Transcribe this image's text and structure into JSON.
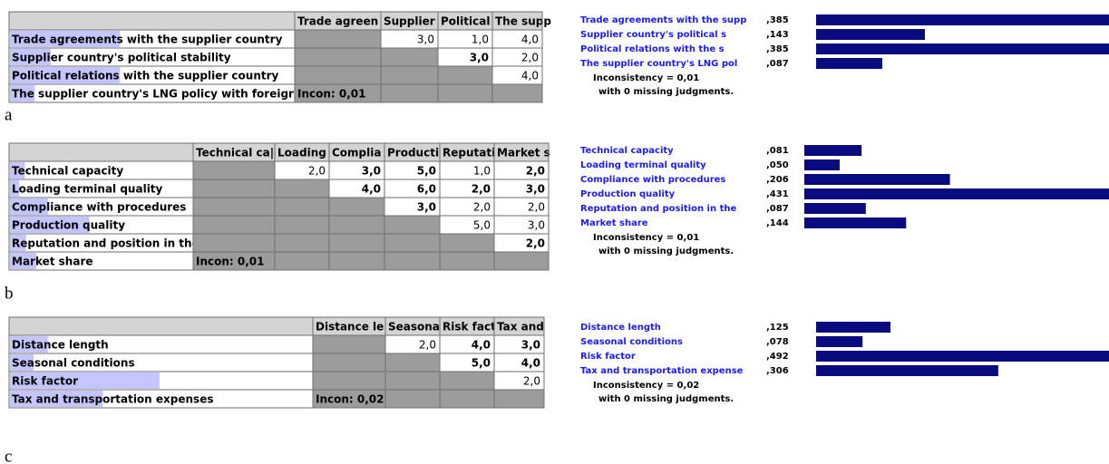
{
  "panels": [
    {
      "letter": "a",
      "columns": [
        "Trade agreen",
        "Supplier",
        "Political",
        "The supp"
      ],
      "rows": [
        {
          "label": "Trade agreements with the supplier country",
          "cells": [
            null,
            {
              "text": "3,0"
            },
            {
              "text": "1,0"
            },
            {
              "text": "4,0"
            }
          ]
        },
        {
          "label": "Supplier country's political stability",
          "cells": [
            null,
            null,
            {
              "text": "3,0",
              "red": true
            },
            {
              "text": "2,0"
            }
          ]
        },
        {
          "label": "Political relations with the supplier country",
          "cells": [
            null,
            null,
            null,
            {
              "text": "4,0"
            }
          ]
        },
        {
          "label": "The supplier country's LNG policy with foreigr",
          "cells": [
            null,
            null,
            null,
            null
          ]
        }
      ],
      "incon": "Incon: 0,01",
      "priorities": {
        "names": [
          "Trade agreements with the supp",
          "Supplier country's political s",
          "Political relations with the s",
          "The supplier country's LNG pol"
        ],
        "values": [
          0.385,
          0.143,
          0.385,
          0.087
        ],
        "value_labels": [
          ",385",
          ",143",
          ",385",
          ",087"
        ]
      },
      "inconsistency": "Inconsistency = 0,01",
      "missing": "with 0  missing judgments."
    },
    {
      "letter": "b",
      "columns": [
        "Technical ca|",
        "Loading",
        "Complia",
        "Producti",
        "Reputati",
        "Market s"
      ],
      "rows": [
        {
          "label": "Technical capacity",
          "cells": [
            null,
            {
              "text": "2,0"
            },
            {
              "text": "3,0",
              "red": true
            },
            {
              "text": "5,0",
              "red": true
            },
            {
              "text": "1,0"
            },
            {
              "text": "2,0",
              "red": true
            }
          ]
        },
        {
          "label": "Loading terminal quality",
          "cells": [
            null,
            null,
            {
              "text": "4,0",
              "red": true
            },
            {
              "text": "6,0",
              "red": true
            },
            {
              "text": "2,0",
              "red": true
            },
            {
              "text": "3,0",
              "red": true
            }
          ]
        },
        {
          "label": "Compliance with procedures",
          "cells": [
            null,
            null,
            null,
            {
              "text": "3,0",
              "red": true
            },
            {
              "text": "2,0"
            },
            {
              "text": "2,0"
            }
          ]
        },
        {
          "label": "Production quality",
          "cells": [
            null,
            null,
            null,
            null,
            {
              "text": "5,0"
            },
            {
              "text": "3,0"
            }
          ]
        },
        {
          "label": "Reputation and position in the",
          "cells": [
            null,
            null,
            null,
            null,
            null,
            {
              "text": "2,0",
              "red": true
            }
          ]
        },
        {
          "label": "Market share",
          "cells": [
            null,
            null,
            null,
            null,
            null,
            null
          ]
        }
      ],
      "incon": "Incon: 0,01",
      "priorities": {
        "names": [
          "Technical capacity",
          "Loading terminal quality",
          "Compliance with procedures",
          "Production quality",
          "Reputation and position in the",
          "Market share"
        ],
        "values": [
          0.081,
          0.05,
          0.206,
          0.431,
          0.087,
          0.144
        ],
        "value_labels": [
          ",081",
          ",050",
          ",206",
          ",431",
          ",087",
          ",144"
        ]
      },
      "inconsistency": "Inconsistency = 0,01",
      "missing": "with 0  missing judgments."
    },
    {
      "letter": "c",
      "columns": [
        "Distance le",
        "Seasona",
        "Risk fact",
        "Tax and"
      ],
      "rows": [
        {
          "label": "Distance length",
          "cells": [
            null,
            {
              "text": "2,0"
            },
            {
              "text": "4,0",
              "red": true
            },
            {
              "text": "3,0",
              "red": true
            }
          ]
        },
        {
          "label": "Seasonal conditions",
          "cells": [
            null,
            null,
            {
              "text": "5,0",
              "red": true
            },
            {
              "text": "4,0",
              "red": true
            }
          ]
        },
        {
          "label": "Risk factor",
          "cells": [
            null,
            null,
            null,
            {
              "text": "2,0"
            }
          ]
        },
        {
          "label": "Tax and transportation expenses",
          "cells": [
            null,
            null,
            null,
            null
          ]
        }
      ],
      "incon": "Incon: 0,02",
      "priorities": {
        "names": [
          "Distance length",
          "Seasonal conditions",
          "Risk factor",
          "Tax and transportation expense"
        ],
        "values": [
          0.125,
          0.078,
          0.492,
          0.306
        ],
        "value_labels": [
          ",125",
          ",078",
          ",492",
          ",306"
        ]
      },
      "inconsistency": "Inconsistency = 0,02",
      "missing": "with 0  missing judgments."
    }
  ]
}
